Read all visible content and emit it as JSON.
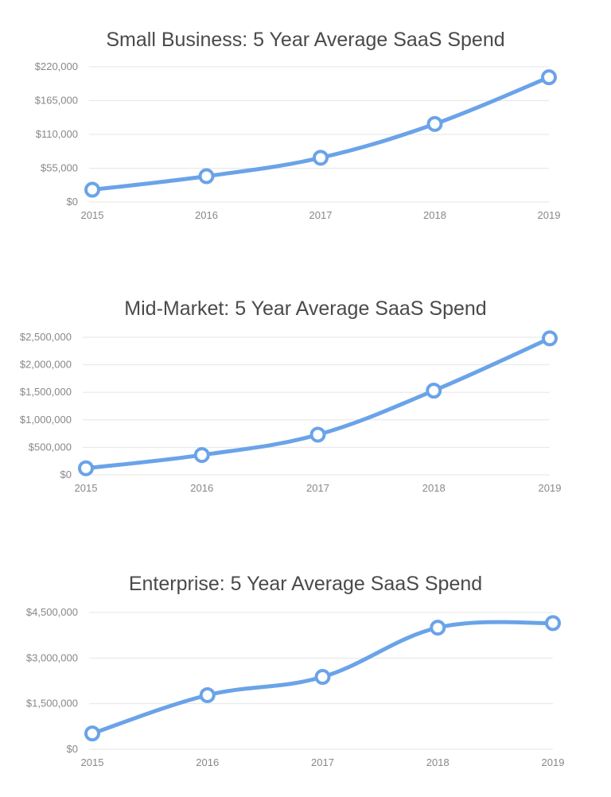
{
  "colors": {
    "series": "#6aa3e8"
  },
  "chart_data": [
    {
      "type": "line",
      "title": "Small Business: 5 Year Average SaaS Spend",
      "categories": [
        "2015",
        "2016",
        "2017",
        "2018",
        "2019"
      ],
      "series": [
        {
          "values": [
            20000,
            42000,
            72000,
            127000,
            203000
          ]
        }
      ],
      "yticks": [
        0,
        55000,
        110000,
        165000,
        220000
      ],
      "ytick_labels": [
        "$0",
        "$55,000",
        "$110,000",
        "$165,000",
        "$220,000"
      ],
      "ylim": [
        0,
        220000
      ],
      "grid": true
    },
    {
      "type": "line",
      "title": "Mid-Market: 5 Year Average SaaS Spend",
      "categories": [
        "2015",
        "2016",
        "2017",
        "2018",
        "2019"
      ],
      "series": [
        {
          "values": [
            120000,
            360000,
            730000,
            1530000,
            2480000
          ]
        }
      ],
      "yticks": [
        0,
        500000,
        1000000,
        1500000,
        2000000,
        2500000
      ],
      "ytick_labels": [
        "$0",
        "$500,000",
        "$1,000,000",
        "$1,500,000",
        "$2,000,000",
        "$2,500,000"
      ],
      "ylim": [
        0,
        2500000
      ],
      "grid": true
    },
    {
      "type": "line",
      "title": "Enterprise: 5 Year Average SaaS Spend",
      "categories": [
        "2015",
        "2016",
        "2017",
        "2018",
        "2019"
      ],
      "series": [
        {
          "values": [
            520000,
            1780000,
            2380000,
            4000000,
            4150000
          ]
        }
      ],
      "yticks": [
        0,
        1500000,
        3000000,
        4500000
      ],
      "ytick_labels": [
        "$0",
        "$1,500,000",
        "$3,000,000",
        "$4,500,000"
      ],
      "ylim": [
        0,
        4500000
      ],
      "grid": true
    }
  ]
}
